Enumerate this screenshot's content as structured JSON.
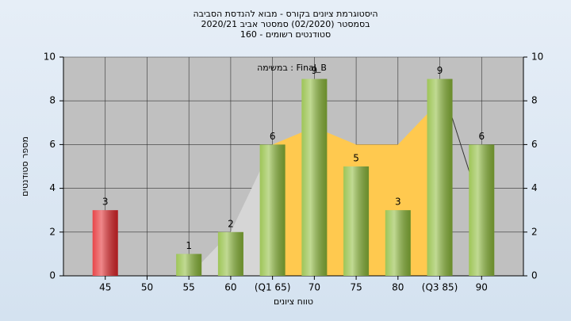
{
  "chart_data": {
    "type": "bar",
    "title": "היסטוגרמת ציונים בקורס - מבוא להנדסת הסביבה",
    "subtitle": "בסמסטר  (02/2020)  סמסטר אביב 2020/21",
    "subtitle2": "סטודנטים רשומים - 160",
    "annotation": "במשימה : Final_B",
    "y_label": "מספר סטודנטים",
    "x_label": "טווח ציונים",
    "categories": [
      "45",
      "50",
      "55",
      "60",
      "(Q1 65)",
      "70",
      "75",
      "80",
      "(Q3 85)",
      "90"
    ],
    "values": [
      3,
      null,
      1,
      2,
      6,
      9,
      5,
      3,
      9,
      6
    ],
    "colors": [
      "#e3262a",
      "#8dbb3a",
      "#8dbb3a",
      "#8dbb3a",
      "#8dbb3a",
      "#8dbb3a",
      "#8dbb3a",
      "#8dbb3a",
      "#8dbb3a",
      "#8dbb3a"
    ],
    "areas": [
      {
        "color": "#ffc94f",
        "values": [
          null,
          null,
          null,
          null,
          6,
          6.8,
          6,
          6,
          8,
          null
        ]
      },
      {
        "color": "#d6d6d6",
        "values": [
          null,
          null,
          0,
          2,
          6,
          null,
          null,
          null,
          null,
          null
        ]
      }
    ],
    "line": {
      "color": "#333333",
      "values": [
        null,
        null,
        null,
        null,
        null,
        null,
        null,
        null,
        9,
        3
      ]
    },
    "ylim": [
      0,
      10
    ],
    "yticks": [
      0,
      2,
      4,
      6,
      8,
      10
    ],
    "y2lim": [
      0,
      10
    ],
    "y2ticks": [
      0,
      2,
      4,
      6,
      8,
      10
    ],
    "grid": true
  }
}
